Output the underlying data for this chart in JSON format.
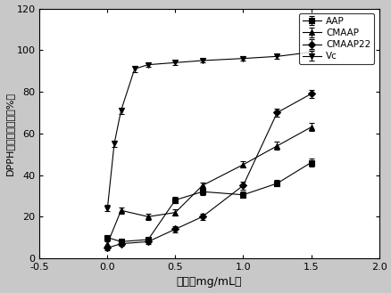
{
  "title": "",
  "xlabel": "浓度（mg/mL）",
  "ylabel": "DPPH自由基清除率（%）",
  "xlim": [
    -0.5,
    2.0
  ],
  "ylim": [
    0,
    120
  ],
  "xticks": [
    -0.5,
    0.0,
    0.5,
    1.0,
    1.5,
    2.0
  ],
  "yticks": [
    0,
    20,
    40,
    60,
    80,
    100,
    120
  ],
  "series": {
    "AAP": {
      "x": [
        0.0,
        0.1,
        0.3,
        0.5,
        0.7,
        1.0,
        1.25,
        1.5
      ],
      "y": [
        10.0,
        8.0,
        9.0,
        28.0,
        32.0,
        30.5,
        36.0,
        46.0
      ],
      "yerr": [
        1.0,
        1.0,
        1.0,
        1.5,
        1.5,
        1.5,
        1.5,
        2.0
      ],
      "marker": "s",
      "linestyle": "-"
    },
    "CMAAP": {
      "x": [
        0.0,
        0.1,
        0.3,
        0.5,
        0.7,
        1.0,
        1.25,
        1.5
      ],
      "y": [
        7.0,
        23.0,
        20.0,
        22.0,
        35.0,
        45.0,
        54.0,
        63.0
      ],
      "yerr": [
        1.0,
        1.5,
        1.5,
        1.5,
        1.5,
        1.5,
        2.0,
        2.0
      ],
      "marker": "^",
      "linestyle": "-"
    },
    "CMAAP22": {
      "x": [
        0.0,
        0.1,
        0.3,
        0.5,
        0.7,
        1.0,
        1.25,
        1.5
      ],
      "y": [
        5.0,
        7.0,
        8.0,
        14.0,
        20.0,
        35.0,
        70.0,
        79.0
      ],
      "yerr": [
        1.0,
        1.0,
        1.0,
        1.5,
        1.5,
        2.0,
        2.0,
        2.0
      ],
      "marker": "D",
      "linestyle": "-"
    },
    "Vc": {
      "x": [
        0.0,
        0.05,
        0.1,
        0.2,
        0.3,
        0.5,
        0.7,
        1.0,
        1.25,
        1.5
      ],
      "y": [
        24.0,
        55.0,
        71.0,
        91.0,
        93.0,
        94.0,
        95.0,
        96.0,
        97.0,
        99.0
      ],
      "yerr": [
        1.5,
        1.5,
        1.5,
        1.5,
        1.0,
        1.0,
        1.0,
        1.0,
        1.0,
        1.0
      ],
      "marker": "v",
      "linestyle": "-"
    }
  },
  "legend_order": [
    "AAP",
    "CMAAP",
    "CMAAP22",
    "Vc"
  ],
  "background_color": "#c8c8c8",
  "plot_bg_color": "#ffffff"
}
